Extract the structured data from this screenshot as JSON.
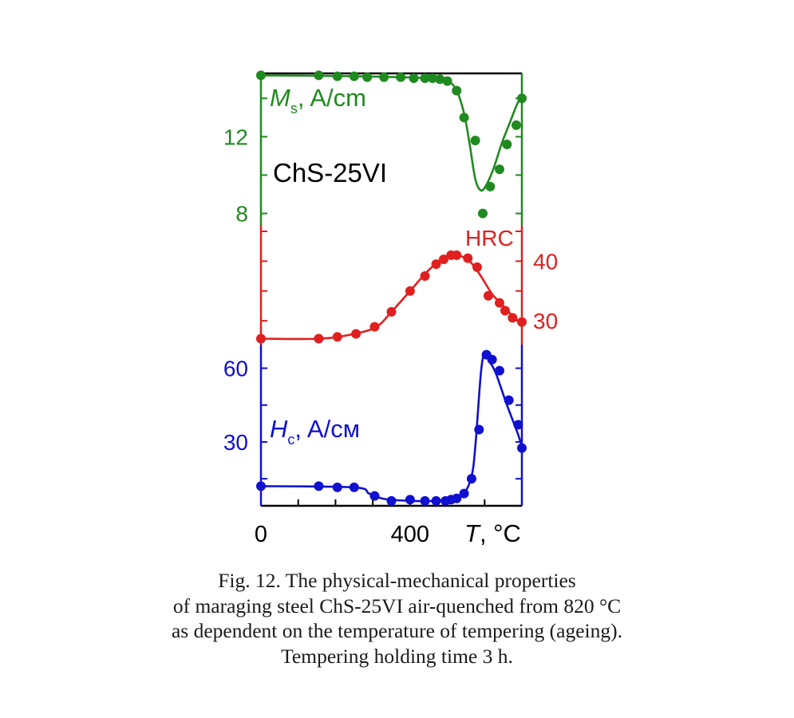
{
  "figure_label": "ChS-25VI",
  "caption": {
    "lines": [
      "Fig. 12. The physical-mechanical properties",
      "of maraging steel ChS-25VI air-quenched from 820 °C",
      "as dependent on the temperature of tempering (ageing).",
      "Tempering holding time 3 h."
    ]
  },
  "chart_data": {
    "type": "line",
    "x_axis": {
      "label_symbol": "T",
      "label_unit": ", °C",
      "ticks": [
        0,
        400
      ],
      "range": [
        0,
        700
      ]
    },
    "panels": [
      {
        "name": "Ms",
        "label_symbol": "M",
        "label_subscript": "s",
        "label_unit": ", A/cm",
        "color": "#1f8a1f",
        "axis_side": "left",
        "ticks": [
          8,
          12
        ],
        "ylim": [
          7.4,
          15.3
        ],
        "x": [
          0,
          155,
          205,
          250,
          285,
          330,
          375,
          410,
          440,
          460,
          480,
          500,
          525,
          545,
          575,
          595,
          615,
          640,
          660,
          685,
          700
        ],
        "y": [
          15.2,
          15.2,
          15.15,
          15.15,
          15.1,
          15.1,
          15.1,
          15.05,
          15.05,
          15.05,
          15.0,
          14.9,
          14.4,
          13.0,
          11.8,
          8.0,
          9.4,
          10.3,
          11.6,
          12.6,
          14.0
        ],
        "fit_x": [
          0,
          250,
          450,
          500,
          525,
          545,
          560,
          575,
          590,
          605,
          625,
          645,
          665,
          685,
          700
        ],
        "fit_y": [
          15.2,
          15.15,
          15.05,
          14.9,
          14.4,
          13.2,
          11.6,
          9.8,
          9.2,
          9.5,
          10.4,
          11.6,
          12.6,
          13.6,
          14.2
        ]
      },
      {
        "name": "HRC",
        "label": "HRC",
        "color": "#e02020",
        "axis_side": "right",
        "ticks": [
          30,
          40
        ],
        "ylim": [
          26.0,
          45.0
        ],
        "x": [
          0,
          155,
          205,
          255,
          305,
          350,
          400,
          440,
          470,
          490,
          510,
          525,
          555,
          580,
          610,
          640,
          655,
          675,
          700
        ],
        "y": [
          27.0,
          27.0,
          27.3,
          27.8,
          29.0,
          31.5,
          35.0,
          37.5,
          39.5,
          40.3,
          41.0,
          41.0,
          40.5,
          39.0,
          34.2,
          33.0,
          31.7,
          30.5,
          29.8
        ],
        "fit_x": [
          0,
          160,
          250,
          310,
          350,
          400,
          450,
          490,
          510,
          530,
          560,
          590,
          620,
          650,
          680,
          700
        ],
        "fit_y": [
          27.0,
          27.0,
          27.8,
          29.0,
          31.5,
          35.0,
          38.5,
          40.6,
          41.1,
          41.0,
          40.0,
          37.5,
          34.5,
          32.5,
          30.5,
          29.8
        ]
      },
      {
        "name": "Hc",
        "label_symbol": "H",
        "label_subscript": "c",
        "label_unit": ", A/см",
        "color": "#1010d0",
        "axis_side": "left",
        "ticks": [
          30,
          60
        ],
        "ylim": [
          4.0,
          67.0
        ],
        "x": [
          0,
          155,
          205,
          250,
          305,
          350,
          400,
          440,
          470,
          495,
          510,
          525,
          545,
          565,
          585,
          605,
          620,
          640,
          665,
          690,
          700
        ],
        "y": [
          12.0,
          12.0,
          11.5,
          11.5,
          8.0,
          6.0,
          6.5,
          6.0,
          6.0,
          6.0,
          6.5,
          7.0,
          9.0,
          15.0,
          35.0,
          65.5,
          63.5,
          59.0,
          47.0,
          37.0,
          27.5
        ],
        "fit_x": [
          0,
          250,
          290,
          330,
          400,
          470,
          520,
          545,
          565,
          575,
          590,
          600,
          612,
          630,
          660,
          690,
          700
        ],
        "fit_y": [
          12.0,
          11.5,
          9.0,
          6.8,
          6.0,
          6.0,
          6.8,
          9.0,
          16.0,
          28.0,
          58.0,
          66.0,
          63.0,
          58.0,
          45.0,
          33.0,
          28.0
        ]
      }
    ],
    "grid": false,
    "legend": "none"
  }
}
